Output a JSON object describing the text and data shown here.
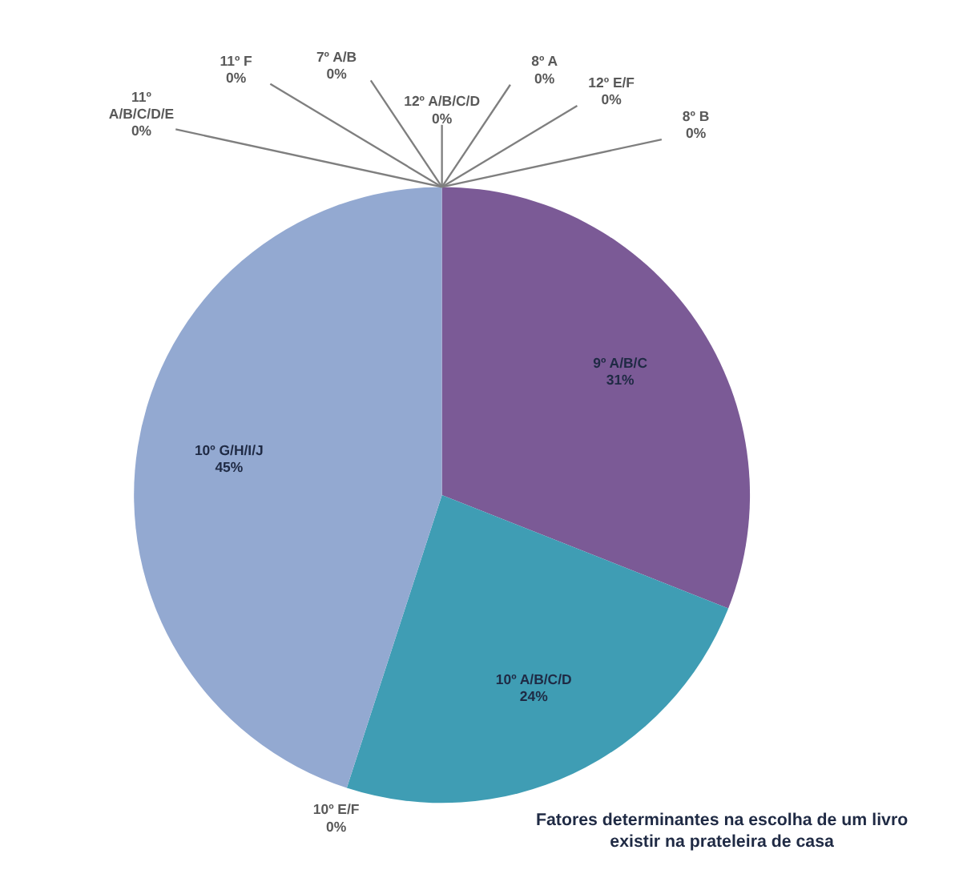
{
  "chart_data": {
    "type": "pie",
    "title": "Fatores determinantes na escolha de um livro existir na prateleira de casa",
    "categories": [
      "9º A/B/C",
      "10º A/B/C/D",
      "10º E/F",
      "10º G/H/I/J",
      "11º A/B/C/D/E",
      "11º F",
      "7º A/B",
      "12º A/B/C/D",
      "8º A",
      "12º E/F",
      "8º B"
    ],
    "values": [
      31,
      24,
      0,
      45,
      0,
      0,
      0,
      0,
      0,
      0,
      0
    ],
    "colors": [
      "#7b5a96",
      "#3f9db4",
      "#f79646",
      "#93a9d1",
      "#4f81bd",
      "#c0504d",
      "#9bbb59",
      "#8064a2",
      "#4bacc6",
      "#2c4d75",
      "#772c2a"
    ],
    "value_labels": [
      "31%",
      "24%",
      "0%",
      "45%",
      "0%",
      "0%",
      "0%",
      "0%",
      "0%",
      "0%",
      "0%"
    ]
  }
}
